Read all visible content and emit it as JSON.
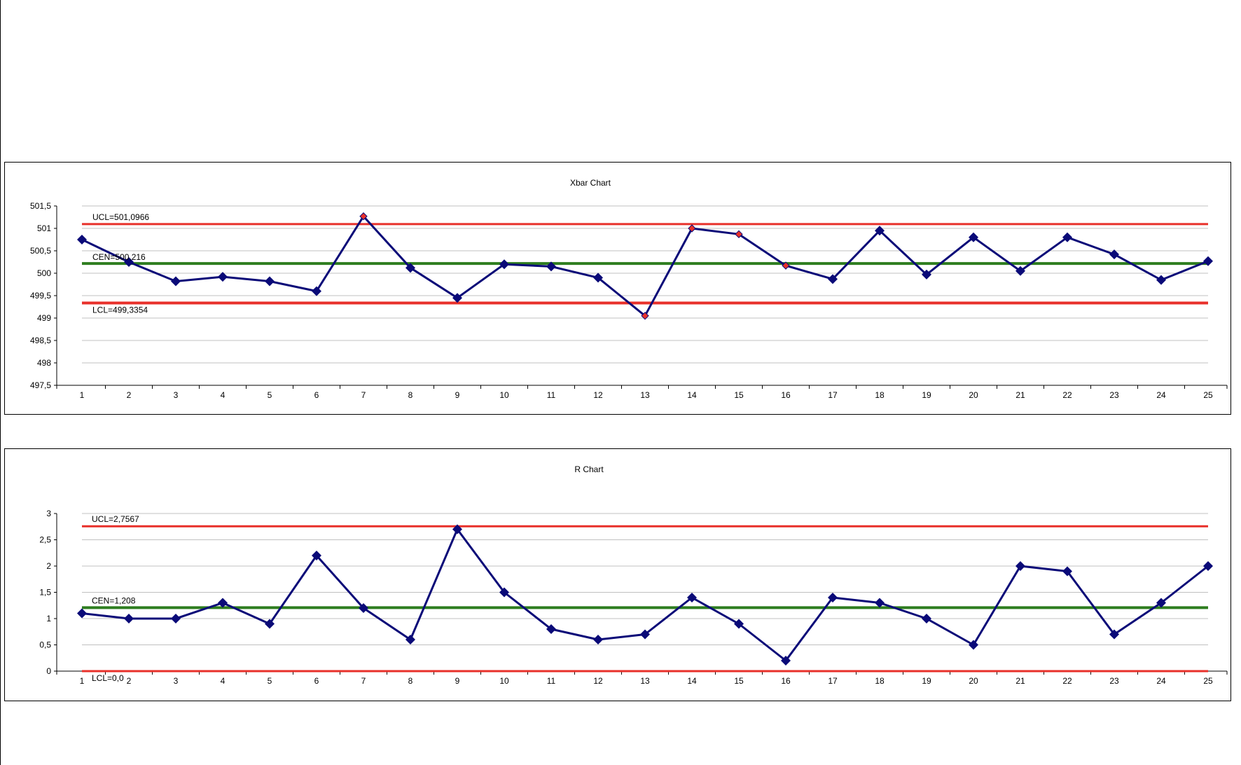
{
  "colors": {
    "series": "#0a0a78",
    "limit": "#e8302a",
    "center": "#2e7d1f",
    "grid": "#c0c0c0",
    "out_of_control": "#e8302a"
  },
  "chart_data": [
    {
      "type": "line",
      "title": "Xbar Chart",
      "categories": [
        "1",
        "2",
        "3",
        "4",
        "5",
        "6",
        "7",
        "8",
        "9",
        "10",
        "11",
        "12",
        "13",
        "14",
        "15",
        "16",
        "17",
        "18",
        "19",
        "20",
        "21",
        "22",
        "23",
        "24",
        "25"
      ],
      "series": [
        {
          "values": [
            500.75,
            500.25,
            499.82,
            499.92,
            499.82,
            499.6,
            501.27,
            500.12,
            499.45,
            500.2,
            500.15,
            499.9,
            499.05,
            501.0,
            500.87,
            500.17,
            499.87,
            500.95,
            499.97,
            500.8,
            500.05,
            500.8,
            500.42,
            499.85,
            500.27
          ]
        }
      ],
      "highlight_points": [
        7,
        13,
        14,
        15,
        16
      ],
      "limits": {
        "ucl": 501.0966,
        "cen": 500.216,
        "lcl": 499.3354
      },
      "limit_labels": {
        "ucl": "UCL=501,0966",
        "cen": "CEN=500,216",
        "lcl": "LCL=499,3354"
      },
      "ylim": [
        497.5,
        501.5
      ],
      "yticks": [
        "501,5",
        "501",
        "500,5",
        "500",
        "499,5",
        "499",
        "498,5",
        "498",
        "497,5"
      ],
      "ytick_values": [
        501.5,
        501,
        500.5,
        500,
        499.5,
        499,
        498.5,
        498,
        497.5
      ],
      "grid": true,
      "xlabel": "",
      "ylabel": ""
    },
    {
      "type": "line",
      "title": "R Chart",
      "categories": [
        "1",
        "2",
        "3",
        "4",
        "5",
        "6",
        "7",
        "8",
        "9",
        "10",
        "11",
        "12",
        "13",
        "14",
        "15",
        "16",
        "17",
        "18",
        "19",
        "20",
        "21",
        "22",
        "23",
        "24",
        "25"
      ],
      "series": [
        {
          "values": [
            1.1,
            1.0,
            1.0,
            1.3,
            0.9,
            2.2,
            1.2,
            0.6,
            2.7,
            1.5,
            0.8,
            0.6,
            0.7,
            1.4,
            0.9,
            0.2,
            1.4,
            1.3,
            1.0,
            0.5,
            2.0,
            1.9,
            0.7,
            1.3,
            2.0
          ]
        }
      ],
      "highlight_points": [],
      "limits": {
        "ucl": 2.7567,
        "cen": 1.208,
        "lcl": 0.0
      },
      "limit_labels": {
        "ucl": "UCL=2,7567",
        "cen": "CEN=1,208",
        "lcl": "LCL=0,0"
      },
      "ylim": [
        0,
        3
      ],
      "yticks": [
        "3",
        "2,5",
        "2",
        "1,5",
        "1",
        "0,5",
        "0"
      ],
      "ytick_values": [
        3,
        2.5,
        2,
        1.5,
        1,
        0.5,
        0
      ],
      "grid": true,
      "xlabel": "",
      "ylabel": ""
    }
  ]
}
